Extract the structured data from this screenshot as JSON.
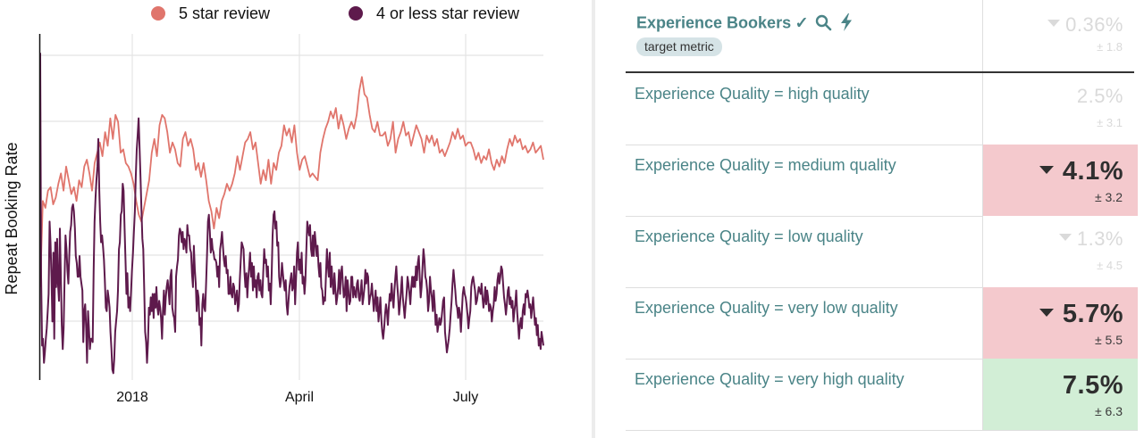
{
  "chart_data": {
    "type": "line",
    "ylabel": "Repeat Booking Rate",
    "xlabel": "",
    "x_ticks": [
      "2018",
      "April",
      "July"
    ],
    "legend_position": "top",
    "grid": true,
    "series": [
      {
        "name": "5 star review",
        "color": "#e0756c",
        "values": [
          27,
          52,
          50,
          55,
          56,
          51,
          53,
          57,
          60,
          55,
          62,
          58,
          54,
          56,
          52,
          58,
          56,
          62,
          64,
          60,
          55,
          63,
          66,
          69,
          65,
          72,
          68,
          76,
          70,
          77,
          75,
          66,
          67,
          63,
          62,
          60,
          57,
          52,
          48,
          46,
          50,
          54,
          58,
          66,
          70,
          65,
          74,
          77,
          76,
          72,
          66,
          69,
          67,
          63,
          62,
          70,
          72,
          68,
          70,
          67,
          61,
          63,
          59,
          63,
          58,
          52,
          49,
          44,
          50,
          47,
          52,
          54,
          57,
          55,
          57,
          60,
          65,
          61,
          65,
          69,
          70,
          72,
          67,
          69,
          63,
          57,
          61,
          58,
          64,
          57,
          63,
          61,
          66,
          68,
          74,
          71,
          73,
          69,
          74,
          66,
          61,
          64,
          65,
          62,
          59,
          60,
          59,
          58,
          66,
          70,
          73,
          75,
          78,
          76,
          79,
          73,
          77,
          74,
          70,
          73,
          75,
          73,
          77,
          84,
          88,
          83,
          82,
          77,
          73,
          72,
          75,
          71,
          71,
          72,
          68,
          70,
          75,
          66,
          70,
          72,
          75,
          71,
          72,
          68,
          71,
          74,
          72,
          70,
          66,
          71,
          69,
          71,
          68,
          70,
          66,
          67,
          65,
          67,
          69,
          72,
          70,
          73,
          70,
          71,
          68,
          69,
          69,
          67,
          64,
          66,
          63,
          65,
          64,
          67,
          63,
          61,
          64,
          62,
          65,
          63,
          67,
          70,
          68,
          71,
          69,
          70,
          67,
          68,
          66,
          67,
          69,
          66,
          67,
          68,
          64
        ]
      },
      {
        "name": "4 or less star review",
        "color": "#5e1a4c",
        "values": [
          95,
          30,
          10,
          12,
          5,
          8,
          12,
          15,
          20,
          25,
          46,
          40,
          30,
          17,
          37,
          12,
          40,
          27,
          41,
          28,
          23,
          44,
          30,
          16,
          9,
          15,
          30,
          42,
          38,
          32,
          28,
          36,
          43,
          45,
          50,
          51,
          49,
          44,
          36,
          34,
          30,
          30,
          36,
          30,
          28,
          26,
          11,
          20,
          22,
          15,
          5,
          20,
          15,
          9,
          12,
          12,
          11,
          32,
          46,
          53,
          58,
          62,
          70,
          55,
          46,
          40,
          42,
          39,
          35,
          29,
          21,
          20,
          26,
          24,
          21,
          14,
          9,
          3,
          2,
          6,
          14,
          17,
          20,
          26,
          38,
          40,
          48,
          49,
          57,
          55,
          44,
          35,
          25,
          31,
          21,
          24,
          20,
          26,
          32,
          37,
          43,
          49,
          59,
          67,
          71,
          76,
          68,
          59,
          50,
          41,
          38,
          26,
          14,
          11,
          5,
          11,
          21,
          19,
          24,
          20,
          25,
          18,
          25,
          21,
          27,
          21,
          19,
          23,
          21,
          18,
          12,
          20,
          26,
          19,
          24,
          27,
          29,
          26,
          22,
          30,
          32,
          21,
          19,
          18,
          14,
          30,
          33,
          35,
          42,
          44,
          43,
          40,
          43,
          38,
          41,
          40,
          37,
          45,
          42,
          42,
          38,
          37,
          31,
          27,
          39,
          32,
          28,
          20,
          26,
          24,
          16,
          18,
          10,
          22,
          25,
          21,
          20,
          28,
          36,
          46,
          48,
          43,
          37,
          41,
          38,
          37,
          35,
          35,
          34,
          30,
          33,
          27,
          38,
          40,
          43,
          39,
          35,
          33,
          36,
          31,
          32,
          25,
          25,
          30,
          25,
          24,
          28,
          27,
          22,
          24,
          26,
          20,
          22,
          29,
          35,
          40,
          39,
          38,
          31,
          27,
          31,
          24,
          29,
          33,
          37,
          30,
          34,
          26,
          33,
          27,
          29,
          24,
          30,
          31,
          26,
          29,
          25,
          24,
          31,
          38,
          34,
          35,
          30,
          33,
          26,
          28,
          22,
          31,
          42,
          48,
          49,
          44,
          46,
          39,
          40,
          30,
          27,
          29,
          34,
          31,
          28,
          26,
          29,
          22,
          19,
          23,
          27,
          29,
          31,
          26,
          27,
          33,
          22,
          29,
          37,
          40,
          32,
          35,
          31,
          37,
          28,
          30,
          25,
          29,
          38,
          46,
          44,
          42,
          45,
          38,
          36,
          42,
          36,
          43,
          40,
          36,
          39,
          33,
          30,
          34,
          27,
          26,
          22,
          24,
          23,
          31,
          38,
          33,
          30,
          37,
          27,
          33,
          28,
          25,
          31,
          26,
          22,
          24,
          27,
          32,
          25,
          31,
          33,
          28,
          24,
          25,
          30,
          20,
          29,
          26,
          22,
          23,
          30,
          30,
          24,
          27,
          25,
          24,
          28,
          29,
          24,
          23,
          26,
          29,
          22,
          24,
          27,
          32,
          28,
          31,
          30,
          22,
          24,
          25,
          28,
          24,
          20,
          23,
          26,
          20,
          24,
          17,
          20,
          24,
          18,
          14,
          12,
          15,
          19,
          22,
          20,
          16,
          21,
          25,
          23,
          28,
          24,
          21,
          26,
          30,
          33,
          28,
          24,
          19,
          22,
          26,
          30,
          24,
          21,
          18,
          22,
          25,
          30,
          28,
          25,
          22,
          27,
          30,
          27,
          30,
          27,
          33,
          29,
          34,
          36,
          30,
          24,
          27,
          33,
          38,
          35,
          30,
          29,
          26,
          20,
          23,
          30,
          26,
          24,
          20,
          26,
          22,
          16,
          19,
          14,
          16,
          18,
          16,
          17,
          20,
          23,
          24,
          14,
          11,
          8,
          10,
          12,
          15,
          19,
          23,
          28,
          32,
          29,
          26,
          22,
          21,
          18,
          21,
          19,
          14,
          20,
          25,
          27,
          25,
          24,
          22,
          19,
          15,
          18,
          20,
          27,
          29,
          30,
          28,
          26,
          22,
          23,
          25,
          27,
          26,
          25,
          28,
          24,
          21,
          23,
          27,
          22,
          26,
          24,
          20,
          22,
          21,
          17,
          20,
          22,
          27,
          23,
          25,
          29,
          31,
          28,
          30,
          33,
          32,
          28,
          24,
          22,
          19,
          22,
          26,
          27,
          22,
          24,
          21,
          23,
          17,
          20,
          22,
          26,
          20,
          16,
          12,
          16,
          18,
          15,
          20,
          22,
          19,
          25,
          24,
          26,
          24,
          21,
          22,
          18,
          21,
          24,
          20,
          16,
          18,
          13,
          16,
          10,
          12,
          9,
          14,
          12,
          10
        ]
      }
    ]
  },
  "legend": {
    "items": [
      {
        "label": "5 star review",
        "color": "#e0756c"
      },
      {
        "label": "4 or less star review",
        "color": "#5e1a4c"
      }
    ]
  },
  "table": {
    "header": {
      "title": "Experience Bookers",
      "checkmark": "✓",
      "search_icon": "search-icon",
      "bolt_icon": "lightning-icon",
      "badge": "target metric",
      "value": "0.36%",
      "error": "± 1.8"
    },
    "rows": [
      {
        "label": "Experience Quality = high quality",
        "value": "2.5%",
        "error": "± 3.1",
        "direction": "none",
        "style": "faded",
        "bg": "#ffffff"
      },
      {
        "label": "Experience Quality = medium quality",
        "value": "4.1%",
        "error": "± 3.2",
        "direction": "down",
        "style": "strong",
        "bg": "#f4c9cd"
      },
      {
        "label": "Experience Quality = low quality",
        "value": "1.3%",
        "error": "± 4.5",
        "direction": "down",
        "style": "faded",
        "bg": "#ffffff"
      },
      {
        "label": "Experience Quality = very low quality",
        "value": "5.7%",
        "error": "± 5.5",
        "direction": "down",
        "style": "strong",
        "bg": "#f4c9cd"
      },
      {
        "label": "Experience Quality = very high quality",
        "value": "7.5%",
        "error": "± 6.3",
        "direction": "none",
        "style": "strong",
        "bg": "#d2eed6"
      }
    ]
  }
}
